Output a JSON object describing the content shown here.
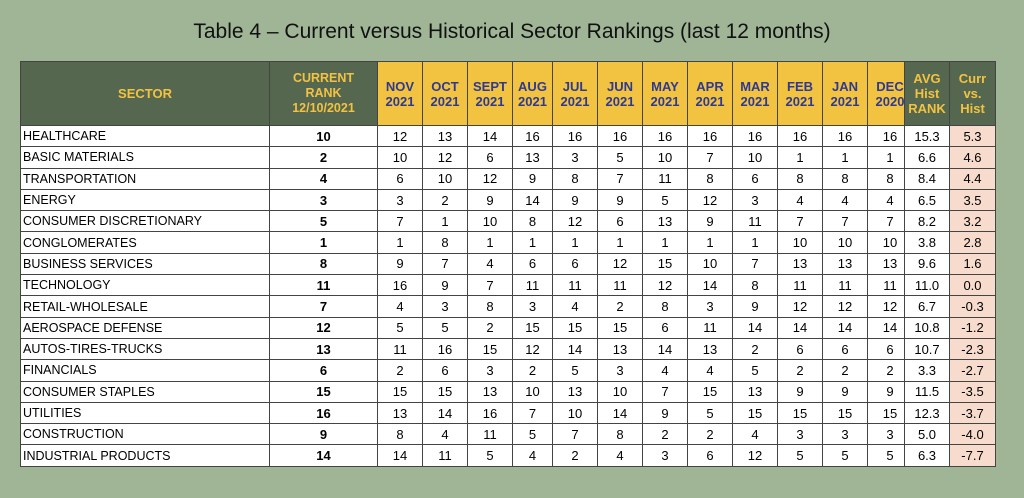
{
  "title": "Table 4 – Current versus Historical Sector Rankings (last 12 months)",
  "chart_data": {
    "type": "table",
    "title": "Table 4 – Current versus Historical Sector Rankings (last 12 months)",
    "header": {
      "sector": "SECTOR",
      "current_rank": "CURRENT\nRANK\n12/10/2021",
      "months": [
        "NOV\n2021",
        "OCT\n2021",
        "SEPT\n2021",
        "AUG\n2021",
        "JUL\n2021",
        "JUN\n2021",
        "MAY\n2021",
        "APR\n2021",
        "MAR\n2021",
        "FEB\n2021",
        "JAN\n2021",
        "DEC\n2020"
      ],
      "avg_hist": "AVG\nHist\nRANK",
      "curr_vs_hist": "Curr\nvs.\nHist"
    },
    "rows": [
      {
        "sector": "HEALTHCARE",
        "current": "10",
        "months": [
          "12",
          "13",
          "14",
          "16",
          "16",
          "16",
          "16",
          "16",
          "16",
          "16",
          "16",
          "16"
        ],
        "avg": "15.3",
        "diff": "5.3"
      },
      {
        "sector": "BASIC MATERIALS",
        "current": "2",
        "months": [
          "10",
          "12",
          "6",
          "13",
          "3",
          "5",
          "10",
          "7",
          "10",
          "1",
          "1",
          "1"
        ],
        "avg": "6.6",
        "diff": "4.6"
      },
      {
        "sector": "TRANSPORTATION",
        "current": "4",
        "months": [
          "6",
          "10",
          "12",
          "9",
          "8",
          "7",
          "11",
          "8",
          "6",
          "8",
          "8",
          "8"
        ],
        "avg": "8.4",
        "diff": "4.4"
      },
      {
        "sector": "ENERGY",
        "current": "3",
        "months": [
          "3",
          "2",
          "9",
          "14",
          "9",
          "9",
          "5",
          "12",
          "3",
          "4",
          "4",
          "4"
        ],
        "avg": "6.5",
        "diff": "3.5"
      },
      {
        "sector": "CONSUMER DISCRETIONARY",
        "current": "5",
        "months": [
          "7",
          "1",
          "10",
          "8",
          "12",
          "6",
          "13",
          "9",
          "11",
          "7",
          "7",
          "7"
        ],
        "avg": "8.2",
        "diff": "3.2"
      },
      {
        "sector": "CONGLOMERATES",
        "current": "1",
        "months": [
          "1",
          "8",
          "1",
          "1",
          "1",
          "1",
          "1",
          "1",
          "1",
          "10",
          "10",
          "10"
        ],
        "avg": "3.8",
        "diff": "2.8"
      },
      {
        "sector": "BUSINESS SERVICES",
        "current": "8",
        "months": [
          "9",
          "7",
          "4",
          "6",
          "6",
          "12",
          "15",
          "10",
          "7",
          "13",
          "13",
          "13"
        ],
        "avg": "9.6",
        "diff": "1.6"
      },
      {
        "sector": "TECHNOLOGY",
        "current": "11",
        "months": [
          "16",
          "9",
          "7",
          "11",
          "11",
          "11",
          "12",
          "14",
          "8",
          "11",
          "11",
          "11"
        ],
        "avg": "11.0",
        "diff": "0.0"
      },
      {
        "sector": "RETAIL-WHOLESALE",
        "current": "7",
        "months": [
          "4",
          "3",
          "8",
          "3",
          "4",
          "2",
          "8",
          "3",
          "9",
          "12",
          "12",
          "12"
        ],
        "avg": "6.7",
        "diff": "-0.3"
      },
      {
        "sector": "AEROSPACE DEFENSE",
        "current": "12",
        "months": [
          "5",
          "5",
          "2",
          "15",
          "15",
          "15",
          "6",
          "11",
          "14",
          "14",
          "14",
          "14"
        ],
        "avg": "10.8",
        "diff": "-1.2"
      },
      {
        "sector": "AUTOS-TIRES-TRUCKS",
        "current": "13",
        "months": [
          "11",
          "16",
          "15",
          "12",
          "14",
          "13",
          "14",
          "13",
          "2",
          "6",
          "6",
          "6"
        ],
        "avg": "10.7",
        "diff": "-2.3"
      },
      {
        "sector": "FINANCIALS",
        "current": "6",
        "months": [
          "2",
          "6",
          "3",
          "2",
          "5",
          "3",
          "4",
          "4",
          "5",
          "2",
          "2",
          "2"
        ],
        "avg": "3.3",
        "diff": "-2.7"
      },
      {
        "sector": "CONSUMER STAPLES",
        "current": "15",
        "months": [
          "15",
          "15",
          "13",
          "10",
          "13",
          "10",
          "7",
          "15",
          "13",
          "9",
          "9",
          "9"
        ],
        "avg": "11.5",
        "diff": "-3.5"
      },
      {
        "sector": "UTILITIES",
        "current": "16",
        "months": [
          "13",
          "14",
          "16",
          "7",
          "10",
          "14",
          "9",
          "5",
          "15",
          "15",
          "15",
          "15"
        ],
        "avg": "12.3",
        "diff": "-3.7"
      },
      {
        "sector": "CONSTRUCTION",
        "current": "9",
        "months": [
          "8",
          "4",
          "11",
          "5",
          "7",
          "8",
          "2",
          "2",
          "4",
          "3",
          "3",
          "3"
        ],
        "avg": "5.0",
        "diff": "-4.0"
      },
      {
        "sector": "INDUSTRIAL PRODUCTS",
        "current": "14",
        "months": [
          "14",
          "11",
          "5",
          "4",
          "2",
          "4",
          "3",
          "6",
          "12",
          "5",
          "5",
          "5"
        ],
        "avg": "6.3",
        "diff": "-7.7"
      }
    ],
    "colors": {
      "page_bg": "#9fb596",
      "header_dark": "#566750",
      "header_gold": "#f2c341",
      "month_text": "#2e3a92",
      "diff_bg": "#f7dccd"
    }
  }
}
